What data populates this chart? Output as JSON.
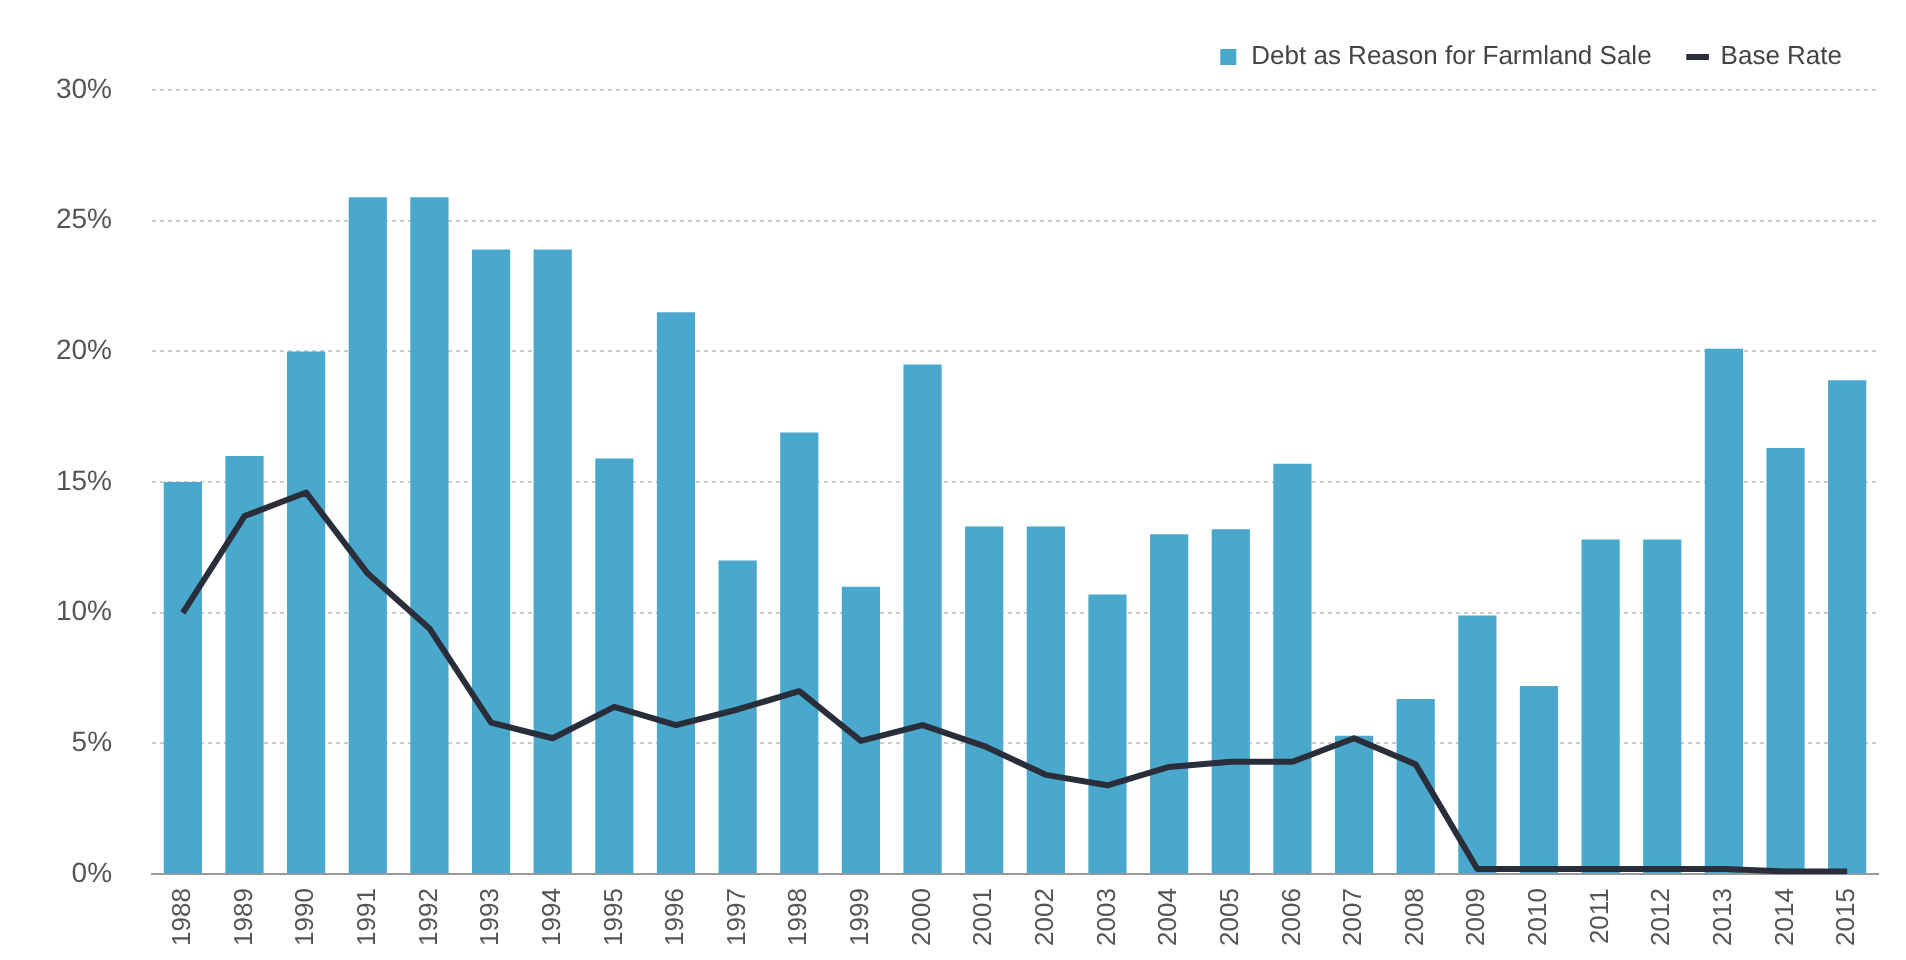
{
  "chart_data": {
    "type": "bar",
    "categories": [
      "1988",
      "1989",
      "1990",
      "1991",
      "1992",
      "1993",
      "1994",
      "1995",
      "1996",
      "1997",
      "1998",
      "1999",
      "2000",
      "2001",
      "2002",
      "2003",
      "2004",
      "2005",
      "2006",
      "2007",
      "2008",
      "2009",
      "2010",
      "2011",
      "2012",
      "2013",
      "2014",
      "2015"
    ],
    "series": [
      {
        "name": "Debt as Reason for Farmland Sale",
        "color": "#4aa8cc",
        "values": [
          15,
          16,
          20,
          25.9,
          25.9,
          23.9,
          23.9,
          15.9,
          21.5,
          12,
          16.9,
          11,
          19.5,
          13.3,
          13.3,
          10.7,
          13,
          13.2,
          15.7,
          5.3,
          6.7,
          9.9,
          7.2,
          12.8,
          12.8,
          20.1,
          16.3,
          18.9
        ]
      },
      {
        "name": "Base Rate",
        "type": "line",
        "color": "#2a2d3a",
        "values": [
          10,
          13.7,
          14.6,
          11.5,
          9.4,
          5.8,
          5.2,
          6.4,
          5.7,
          6.3,
          7,
          5.1,
          5.7,
          4.9,
          3.8,
          3.4,
          4.1,
          4.3,
          4.3,
          5.2,
          4.2,
          0.2,
          0.2,
          0.2,
          0.2,
          0.2,
          0.1,
          0.1
        ]
      }
    ],
    "ylim": [
      0,
      30
    ],
    "yticks": [
      {
        "value": 0,
        "label": "0%"
      },
      {
        "value": 5,
        "label": "5%"
      },
      {
        "value": 10,
        "label": "10%"
      },
      {
        "value": 15,
        "label": "15%"
      },
      {
        "value": 20,
        "label": "20%"
      },
      {
        "value": 25,
        "label": "25%"
      },
      {
        "value": 30,
        "label": "30%"
      }
    ],
    "grid": "y",
    "legend": "top right",
    "marker": "none",
    "line_style": "solid"
  }
}
